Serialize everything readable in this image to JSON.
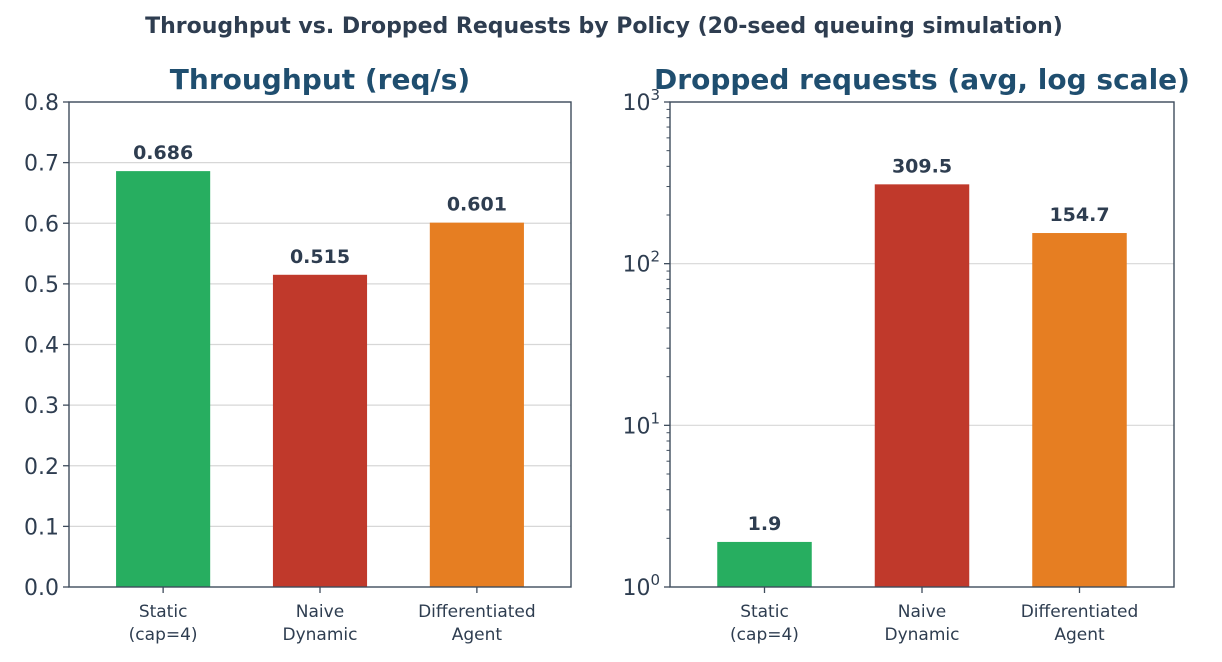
{
  "figure": {
    "title": "Throughput vs. Dropped Requests by Policy  (20-seed queuing simulation)"
  },
  "chart_data": [
    {
      "type": "bar",
      "title": "Throughput (req/s)",
      "xlabel": "",
      "ylabel": "",
      "scale": "linear",
      "ylim": [
        0,
        0.8
      ],
      "yticks": [
        0.0,
        0.1,
        0.2,
        0.3,
        0.4,
        0.5,
        0.6,
        0.7,
        0.8
      ],
      "ytick_labels": [
        "0.0",
        "0.1",
        "0.2",
        "0.3",
        "0.4",
        "0.5",
        "0.6",
        "0.7",
        "0.8"
      ],
      "categories": [
        [
          "Static",
          "(cap=4)"
        ],
        [
          "Naive",
          "Dynamic"
        ],
        [
          "Differentiated",
          "Agent"
        ]
      ],
      "values": [
        0.686,
        0.515,
        0.601
      ],
      "value_labels": [
        "0.686",
        "0.515",
        "0.601"
      ],
      "colors": [
        "#27ae60",
        "#c0392b",
        "#e67e22"
      ],
      "grid": "y"
    },
    {
      "type": "bar",
      "title": "Dropped requests (avg, log scale)",
      "xlabel": "",
      "ylabel": "",
      "scale": "log",
      "ylim": [
        1,
        1000
      ],
      "yticks": [
        1,
        10,
        100,
        1000
      ],
      "ytick_labels": [
        {
          "base": "10",
          "exp": "0"
        },
        {
          "base": "10",
          "exp": "1"
        },
        {
          "base": "10",
          "exp": "2"
        },
        {
          "base": "10",
          "exp": "3"
        }
      ],
      "categories": [
        [
          "Static",
          "(cap=4)"
        ],
        [
          "Naive",
          "Dynamic"
        ],
        [
          "Differentiated",
          "Agent"
        ]
      ],
      "values": [
        1.9,
        309.5,
        154.7
      ],
      "value_labels": [
        "1.9",
        "309.5",
        "154.7"
      ],
      "colors": [
        "#27ae60",
        "#c0392b",
        "#e67e22"
      ],
      "grid": "y"
    }
  ]
}
